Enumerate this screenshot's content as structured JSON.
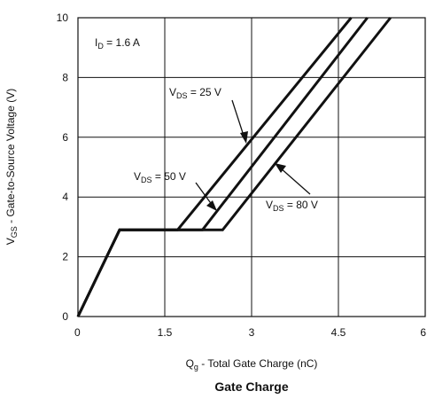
{
  "chart_data": {
    "type": "line",
    "title": "Gate Charge",
    "xlabel": {
      "main": "Q",
      "sub": "g",
      "rest": " - Total Gate Charge (nC)"
    },
    "ylabel": {
      "main": "V",
      "sub": "GS",
      "rest": " - Gate-to-Source Voltage (V)"
    },
    "xlim": [
      0,
      6
    ],
    "ylim": [
      0,
      10
    ],
    "x_ticks": [
      0,
      1.5,
      3,
      4.5,
      6
    ],
    "x_tick_labels": [
      "0",
      "1.5",
      "3",
      "4.5",
      "6"
    ],
    "y_ticks": [
      0,
      2,
      4,
      6,
      8,
      10
    ],
    "y_tick_labels": [
      "0",
      "2",
      "4",
      "6",
      "8",
      "10"
    ],
    "grid": true,
    "series": [
      {
        "name": {
          "main": "V",
          "sub": "DS",
          "rest": " = 25 V"
        },
        "x": [
          0,
          0.72,
          1.72,
          4.72
        ],
        "y": [
          0,
          2.9,
          2.9,
          10
        ]
      },
      {
        "name": {
          "main": "V",
          "sub": "DS",
          "rest": " = 50 V"
        },
        "x": [
          0,
          0.72,
          2.15,
          5.0
        ],
        "y": [
          0,
          2.9,
          2.9,
          10
        ]
      },
      {
        "name": {
          "main": "V",
          "sub": "DS",
          "rest": " = 80 V"
        },
        "x": [
          0,
          0.72,
          2.5,
          5.4
        ],
        "y": [
          0,
          2.9,
          2.9,
          10
        ]
      }
    ],
    "annotations": [
      {
        "main": "I",
        "sub": "D",
        "rest": " = 1.6 A"
      }
    ]
  }
}
